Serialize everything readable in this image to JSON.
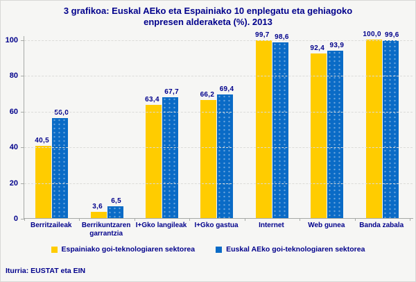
{
  "title": {
    "line1": "3 grafikoa: Euskal AEko eta Espainiako 10 enplegatu eta gehiagoko",
    "line2": "enpresen alderaketa (%). 2013"
  },
  "footer": {
    "source": "Iturria: EUSTAT eta EIN"
  },
  "colors": {
    "series_spain": "#FFCC00",
    "series_basque": "#0A6BC6",
    "text_navy": "#00008B",
    "background": "#F6F6F4",
    "gridline": "#DBDBD8",
    "axis": "#A6A9A6"
  },
  "chart_data": {
    "type": "bar",
    "title": "3 grafikoa: Euskal AEko eta Espainiako 10 enplegatu eta gehiagoko enpresen alderaketa (%). 2013",
    "categories": [
      "Berritzaileak",
      "Berrikuntzaren garrantzia",
      "I+Gko langileak",
      "I+Gko gastua",
      "Internet",
      "Web gunea",
      "Banda zabala"
    ],
    "series": [
      {
        "name": "Espainiako goi-teknologiaren sektorea",
        "color": "#FFCC00",
        "values": [
          40.5,
          3.6,
          63.4,
          66.2,
          99.7,
          92.4,
          100.0
        ],
        "labels": [
          "40,5",
          "3,6",
          "63,4",
          "66,2",
          "99,7",
          "92,4",
          "100,0"
        ]
      },
      {
        "name": "Euskal AEko goi-teknologiaren sektorea",
        "color": "#0A6BC6",
        "values": [
          56.0,
          6.5,
          67.7,
          69.4,
          98.6,
          93.9,
          99.6
        ],
        "labels": [
          "56,0",
          "6,5",
          "67,7",
          "69,4",
          "98,6",
          "93,9",
          "99,6"
        ]
      }
    ],
    "xlabel": "",
    "ylabel": "",
    "ylim": [
      0,
      100
    ],
    "ytick_step": 20,
    "yticks": [
      "0",
      "20",
      "40",
      "60",
      "80",
      "100"
    ],
    "grid": "horizontal-dashed",
    "legend_position": "bottom"
  }
}
